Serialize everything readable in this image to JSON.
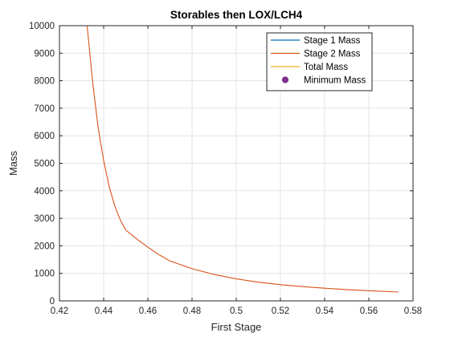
{
  "chart_data": {
    "type": "line",
    "title": "Storables then LOX/LCH4",
    "xlabel": "First Stage",
    "ylabel": "Mass",
    "xlim": [
      0.42,
      0.58
    ],
    "ylim": [
      0,
      10000
    ],
    "x_ticks": [
      "0.42",
      "0.44",
      "0.46",
      "0.48",
      "0.5",
      "0.52",
      "0.54",
      "0.56",
      "0.58"
    ],
    "y_ticks": [
      "0",
      "1000",
      "2000",
      "3000",
      "4000",
      "5000",
      "6000",
      "7000",
      "8000",
      "9000",
      "10000"
    ],
    "grid": true,
    "legend_position": "top-right",
    "series": [
      {
        "name": "Stage 1 Mass",
        "color": "#0072BD",
        "x": [],
        "y": []
      },
      {
        "name": "Stage 2 Mass",
        "color": "#D95319",
        "x": [
          0.4325,
          0.435,
          0.4375,
          0.44,
          0.4425,
          0.445,
          0.4475,
          0.45,
          0.455,
          0.46,
          0.465,
          0.47,
          0.48,
          0.49,
          0.5,
          0.51,
          0.52,
          0.53,
          0.54,
          0.55,
          0.56,
          0.5735
        ],
        "y": [
          10000,
          7950,
          6300,
          5100,
          4150,
          3450,
          2950,
          2570,
          2250,
          1950,
          1680,
          1450,
          1170,
          960,
          800,
          680,
          590,
          520,
          460,
          410,
          370,
          320
        ]
      },
      {
        "name": "Total Mass",
        "color": "#EDB120",
        "x": [],
        "y": []
      },
      {
        "name": "Minimum Mass",
        "color": "#7E2F8E",
        "marker": "circle",
        "x": [],
        "y": []
      }
    ]
  }
}
